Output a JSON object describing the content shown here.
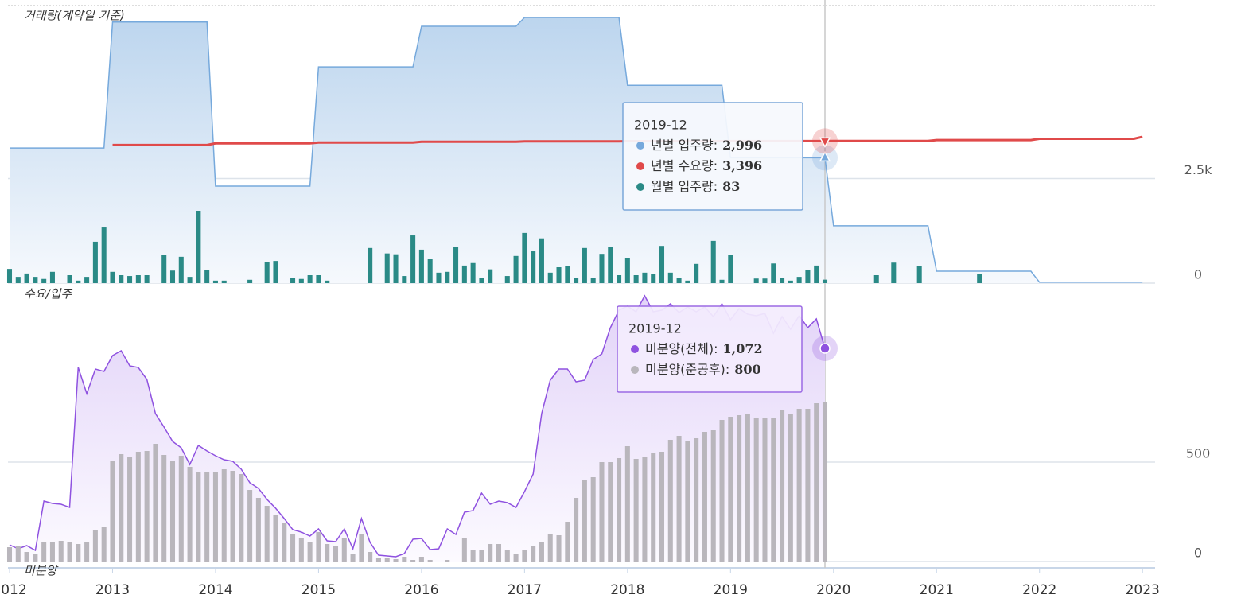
{
  "labels": [
    "거래량(계약일 기준)",
    "수요/입주",
    "미분양"
  ],
  "chart_data": [
    {
      "type": "combo",
      "x": [
        "2012-01",
        "2012-02",
        "2012-03",
        "2012-04",
        "2012-05",
        "2012-06",
        "2012-07",
        "2012-08",
        "2012-09",
        "2012-10",
        "2012-11",
        "2012-12",
        "2013-01",
        "2013-02",
        "2013-03",
        "2013-04",
        "2013-05",
        "2013-06",
        "2013-07",
        "2013-08",
        "2013-09",
        "2013-10",
        "2013-11",
        "2013-12",
        "2014-01",
        "2014-02",
        "2014-03",
        "2014-04",
        "2014-05",
        "2014-06",
        "2014-07",
        "2014-08",
        "2014-09",
        "2014-10",
        "2014-11",
        "2014-12",
        "2015-01",
        "2015-02",
        "2015-03",
        "2015-04",
        "2015-05",
        "2015-06",
        "2015-07",
        "2015-08",
        "2015-09",
        "2015-10",
        "2015-11",
        "2015-12",
        "2016-01",
        "2016-02",
        "2016-03",
        "2016-04",
        "2016-05",
        "2016-06",
        "2016-07",
        "2016-08",
        "2016-09",
        "2016-10",
        "2016-11",
        "2016-12",
        "2017-01",
        "2017-02",
        "2017-03",
        "2017-04",
        "2017-05",
        "2017-06",
        "2017-07",
        "2017-08",
        "2017-09",
        "2017-10",
        "2017-11",
        "2017-12",
        "2018-01",
        "2018-02",
        "2018-03",
        "2018-04",
        "2018-05",
        "2018-06",
        "2018-07",
        "2018-08",
        "2018-09",
        "2018-10",
        "2018-11",
        "2018-12",
        "2019-01",
        "2019-02",
        "2019-03",
        "2019-04",
        "2019-05",
        "2019-06",
        "2019-07",
        "2019-08",
        "2019-09",
        "2019-10",
        "2019-11",
        "2019-12",
        "2020-01",
        "2020-02",
        "2020-03",
        "2020-04",
        "2020-05",
        "2020-06",
        "2020-07",
        "2020-08",
        "2020-09",
        "2020-10",
        "2020-11",
        "2020-12",
        "2021-01",
        "2021-02",
        "2021-03",
        "2021-04",
        "2021-05",
        "2021-06",
        "2021-07",
        "2021-08",
        "2021-09",
        "2021-10",
        "2021-11",
        "2021-12",
        "2022-01",
        "2022-02",
        "2022-03",
        "2022-04",
        "2022-05",
        "2022-06",
        "2022-07",
        "2022-08",
        "2022-09",
        "2022-10",
        "2022-11",
        "2022-12",
        "2023-01"
      ],
      "xlim": [
        "2012-01",
        "2023-02"
      ],
      "ylim": [
        0,
        6635
      ],
      "yticks": [
        0,
        {
          "value": 2500,
          "label": "2.5k"
        }
      ],
      "grid": true,
      "series": [
        {
          "name": "년별 입주량",
          "type": "area",
          "color": "#76a9dc",
          "values": [
            3230,
            3230,
            3230,
            3230,
            3230,
            3230,
            3230,
            3230,
            3230,
            3230,
            3230,
            3230,
            6240,
            6240,
            6240,
            6240,
            6240,
            6240,
            6240,
            6240,
            6240,
            6240,
            6240,
            6240,
            2320,
            2320,
            2320,
            2320,
            2320,
            2320,
            2320,
            2320,
            2320,
            2320,
            2320,
            2320,
            5170,
            5170,
            5170,
            5170,
            5170,
            5170,
            5170,
            5170,
            5170,
            5170,
            5170,
            5170,
            6140,
            6140,
            6140,
            6140,
            6140,
            6140,
            6140,
            6140,
            6140,
            6140,
            6140,
            6140,
            6350,
            6350,
            6350,
            6350,
            6350,
            6350,
            6350,
            6350,
            6350,
            6350,
            6350,
            6350,
            4730,
            4730,
            4730,
            4730,
            4730,
            4730,
            4730,
            4730,
            4730,
            4730,
            4730,
            4730,
            2996,
            2996,
            2996,
            2996,
            2996,
            2996,
            2996,
            2996,
            2996,
            2996,
            2996,
            2996,
            1370,
            1370,
            1370,
            1370,
            1370,
            1370,
            1370,
            1370,
            1370,
            1370,
            1370,
            1370,
            285,
            285,
            285,
            285,
            285,
            285,
            285,
            285,
            285,
            285,
            285,
            285,
            20,
            20,
            20,
            20,
            20,
            20,
            20,
            20,
            20,
            20,
            20,
            20,
            20
          ]
        },
        {
          "name": "년별 수요량",
          "type": "line",
          "color": "#e04a4a",
          "values": [
            null,
            null,
            null,
            null,
            null,
            null,
            null,
            null,
            null,
            null,
            null,
            null,
            3300,
            3300,
            3300,
            3300,
            3300,
            3300,
            3300,
            3300,
            3300,
            3300,
            3300,
            3300,
            3340,
            3340,
            3340,
            3340,
            3340,
            3340,
            3340,
            3340,
            3340,
            3340,
            3340,
            3340,
            3360,
            3360,
            3360,
            3360,
            3360,
            3360,
            3360,
            3360,
            3360,
            3360,
            3360,
            3360,
            3380,
            3380,
            3380,
            3380,
            3380,
            3380,
            3380,
            3380,
            3380,
            3380,
            3380,
            3380,
            3390,
            3390,
            3390,
            3390,
            3390,
            3390,
            3390,
            3390,
            3390,
            3390,
            3390,
            3390,
            3393,
            3393,
            3393,
            3393,
            3393,
            3393,
            3393,
            3393,
            3393,
            3393,
            3393,
            3393,
            3396,
            3396,
            3396,
            3396,
            3396,
            3396,
            3396,
            3396,
            3396,
            3396,
            3396,
            3396,
            3398,
            3398,
            3398,
            3398,
            3398,
            3398,
            3398,
            3398,
            3398,
            3398,
            3398,
            3398,
            3420,
            3420,
            3420,
            3420,
            3420,
            3420,
            3420,
            3420,
            3420,
            3420,
            3420,
            3420,
            3450,
            3450,
            3450,
            3450,
            3450,
            3450,
            3450,
            3450,
            3450,
            3450,
            3450,
            3450,
            3500
          ]
        },
        {
          "name": "월별 입주량",
          "type": "bar",
          "color": "#2a8a86",
          "values": [
            340,
            150,
            230,
            150,
            100,
            270,
            0,
            190,
            60,
            150,
            990,
            1330,
            270,
            190,
            170,
            190,
            190,
            0,
            670,
            300,
            630,
            150,
            1730,
            320,
            60,
            60,
            0,
            0,
            80,
            0,
            510,
            530,
            0,
            130,
            100,
            190,
            190,
            60,
            0,
            0,
            0,
            0,
            840,
            0,
            710,
            690,
            170,
            1140,
            800,
            570,
            250,
            270,
            870,
            420,
            480,
            130,
            330,
            0,
            170,
            650,
            1200,
            760,
            1070,
            250,
            380,
            400,
            130,
            840,
            130,
            700,
            870,
            190,
            590,
            190,
            250,
            210,
            890,
            250,
            130,
            60,
            460,
            0,
            1010,
            80,
            670,
            0,
            0,
            110,
            110,
            470,
            130,
            60,
            150,
            320,
            420,
            83,
            0,
            0,
            0,
            0,
            0,
            190,
            0,
            490,
            0,
            0,
            400,
            0,
            0,
            0,
            0,
            0,
            0,
            210,
            0,
            0,
            0,
            0,
            0,
            0,
            null,
            null,
            null,
            null,
            null,
            null,
            null,
            null,
            null,
            null,
            null,
            null,
            null
          ]
        }
      ],
      "tooltip": {
        "title": "2019-12",
        "separator": ":",
        "values": [
          2996,
          3396,
          83
        ],
        "value_labels": [
          "2,996",
          "3,396",
          "83"
        ]
      }
    },
    {
      "type": "combo",
      "x": [
        "2012-01",
        "2012-02",
        "2012-03",
        "2012-04",
        "2012-05",
        "2012-06",
        "2012-07",
        "2012-08",
        "2012-09",
        "2012-10",
        "2012-11",
        "2012-12",
        "2013-01",
        "2013-02",
        "2013-03",
        "2013-04",
        "2013-05",
        "2013-06",
        "2013-07",
        "2013-08",
        "2013-09",
        "2013-10",
        "2013-11",
        "2013-12",
        "2014-01",
        "2014-02",
        "2014-03",
        "2014-04",
        "2014-05",
        "2014-06",
        "2014-07",
        "2014-08",
        "2014-09",
        "2014-10",
        "2014-11",
        "2014-12",
        "2015-01",
        "2015-02",
        "2015-03",
        "2015-04",
        "2015-05",
        "2015-06",
        "2015-07",
        "2015-08",
        "2015-09",
        "2015-10",
        "2015-11",
        "2015-12",
        "2016-01",
        "2016-02",
        "2016-03",
        "2016-04",
        "2016-05",
        "2016-06",
        "2016-07",
        "2016-08",
        "2016-09",
        "2016-10",
        "2016-11",
        "2016-12",
        "2017-01",
        "2017-02",
        "2017-03",
        "2017-04",
        "2017-05",
        "2017-06",
        "2017-07",
        "2017-08",
        "2017-09",
        "2017-10",
        "2017-11",
        "2017-12",
        "2018-01",
        "2018-02",
        "2018-03",
        "2018-04",
        "2018-05",
        "2018-06",
        "2018-07",
        "2018-08",
        "2018-09",
        "2018-10",
        "2018-11",
        "2018-12",
        "2019-01",
        "2019-02",
        "2019-03",
        "2019-04",
        "2019-05",
        "2019-06",
        "2019-07",
        "2019-08",
        "2019-09",
        "2019-10",
        "2019-11",
        "2019-12"
      ],
      "xlim": [
        "2012-01",
        "2023-02"
      ],
      "xticks": [
        "2012",
        "2013",
        "2014",
        "2015",
        "2016",
        "2017",
        "2018",
        "2019",
        "2020",
        "2021",
        "2022",
        "2023"
      ],
      "ylim": [
        0,
        1304
      ],
      "yticks": [
        0,
        500
      ],
      "grid": true,
      "series": [
        {
          "name": "미분양(전체)",
          "type": "area",
          "color": "#8f52e0",
          "values": [
            84,
            64,
            80,
            56,
            304,
            292,
            288,
            272,
            976,
            844,
            968,
            956,
            1036,
            1060,
            984,
            976,
            916,
            744,
            676,
            604,
            572,
            488,
            584,
            556,
            532,
            512,
            504,
            464,
            396,
            368,
            312,
            268,
            216,
            160,
            148,
            128,
            164,
            104,
            100,
            164,
            64,
            216,
            96,
            32,
            28,
            24,
            40,
            112,
            116,
            60,
            64,
            164,
            136,
            248,
            256,
            344,
            288,
            304,
            296,
            272,
            352,
            440,
            744,
            912,
            968,
            968,
            904,
            912,
            1016,
            1044,
            1176,
            1264,
            1284,
            1256,
            1336,
            1256,
            1264,
            1296,
            1252,
            1280,
            1256,
            1280,
            1232,
            1296,
            1216,
            1272,
            1244,
            1236,
            1248,
            1148,
            1232,
            1168,
            1236,
            1176,
            1220,
            1072
          ]
        },
        {
          "name": "미분양(준공후)",
          "type": "bar",
          "color": "#b9b6bc",
          "values": [
            72,
            80,
            48,
            40,
            100,
            100,
            104,
            96,
            88,
            96,
            156,
            176,
            504,
            540,
            528,
            552,
            556,
            592,
            536,
            504,
            532,
            476,
            448,
            448,
            448,
            464,
            456,
            440,
            360,
            320,
            280,
            232,
            192,
            140,
            120,
            100,
            148,
            88,
            80,
            120,
            40,
            140,
            48,
            20,
            20,
            12,
            24,
            8,
            24,
            8,
            0,
            8,
            0,
            120,
            60,
            56,
            88,
            88,
            60,
            36,
            60,
            80,
            96,
            136,
            132,
            200,
            320,
            408,
            424,
            500,
            500,
            520,
            580,
            516,
            524,
            544,
            552,
            612,
            632,
            604,
            620,
            652,
            660,
            712,
            728,
            736,
            744,
            720,
            724,
            724,
            764,
            740,
            768,
            768,
            796,
            800
          ]
        }
      ],
      "tooltip": {
        "title": "2019-12",
        "separator": ":",
        "values": [
          1072,
          800
        ],
        "value_labels": [
          "1,072",
          "800"
        ]
      }
    }
  ]
}
